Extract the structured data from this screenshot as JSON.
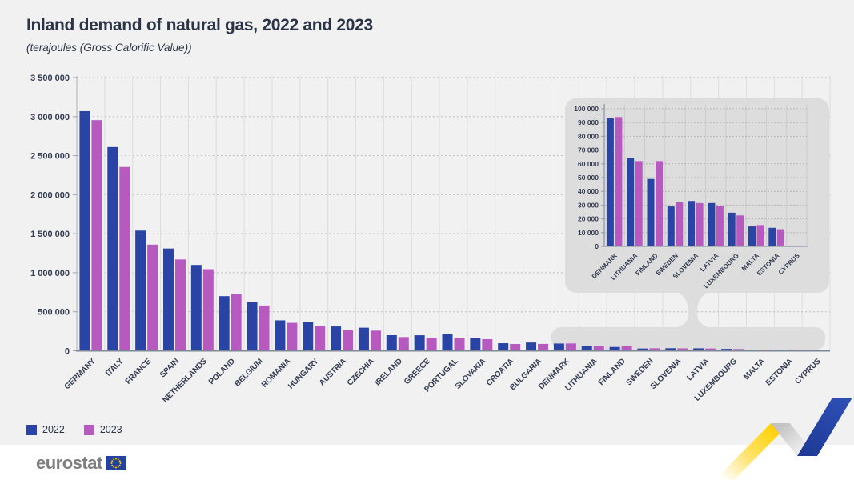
{
  "header": {
    "title": "Inland demand of natural gas, 2022 and 2023",
    "subtitle": "(terajoules (Gross Calorific Value))"
  },
  "legend": {
    "items": [
      {
        "label": "2022",
        "color": "#2a44a5"
      },
      {
        "label": "2023",
        "color": "#b75ac0"
      }
    ]
  },
  "footer": {
    "logo_text": "eurostat"
  },
  "colors": {
    "background_card": "#f2f1f1",
    "background_footer": "#ffffff",
    "series_2022": "#2a44a5",
    "series_2023": "#b75ac0",
    "inset_panel": "#dedddd",
    "text_dark": "#2b3446",
    "ribbon_yellow": "#ffd617",
    "ribbon_blue": "#2644a7"
  },
  "chart_data": {
    "type": "bar",
    "title": "Inland demand of natural gas, 2022 and 2023",
    "unit_label": "(terajoules (Gross Calorific Value))",
    "ylim": [
      0,
      3500000
    ],
    "ytick_step": 500000,
    "grid": true,
    "legend_position": "bottom-left",
    "categories": [
      "GERMANY",
      "ITALY",
      "FRANCE",
      "SPAIN",
      "NETHERLANDS",
      "POLAND",
      "BELGIUM",
      "ROMANIA",
      "HUNGARY",
      "AUSTRIA",
      "CZECHIA",
      "IRELAND",
      "GREECE",
      "PORTUGAL",
      "SLOVAKIA",
      "CROATIA",
      "BULGARIA",
      "DENMARK",
      "LITHUANIA",
      "FINLAND",
      "SWEDEN",
      "SLOVENIA",
      "LATVIA",
      "LUXEMBOURG",
      "MALTA",
      "ESTONIA",
      "CYPRUS"
    ],
    "series": [
      {
        "name": "2022",
        "color": "#2a44a5",
        "values": [
          3070000,
          2610000,
          1540000,
          1310000,
          1100000,
          700000,
          620000,
          390000,
          365000,
          312000,
          296000,
          200000,
          199000,
          218000,
          160000,
          97000,
          106000,
          93000,
          64000,
          49000,
          29000,
          33000,
          31500,
          24500,
          14500,
          13500,
          500
        ]
      },
      {
        "name": "2023",
        "color": "#b75ac0",
        "values": [
          2955000,
          2355000,
          1360000,
          1170000,
          1045000,
          730000,
          580000,
          358000,
          322000,
          262000,
          258000,
          176000,
          168000,
          169000,
          149000,
          87000,
          88000,
          94000,
          62000,
          62000,
          32000,
          31500,
          29500,
          22500,
          15500,
          12500,
          600
        ]
      }
    ],
    "inset": {
      "type": "bar",
      "description": "magnified view of the smallest countries",
      "ylim": [
        0,
        100000
      ],
      "ytick_step": 10000,
      "categories": [
        "DENMARK",
        "LITHUANIA",
        "FINLAND",
        "SWEDEN",
        "SLOVENIA",
        "LATVIA",
        "LUXEMBOURG",
        "MALTA",
        "ESTONIA",
        "CYPRUS"
      ],
      "series": [
        {
          "name": "2022",
          "color": "#2a44a5",
          "values": [
            93000,
            64000,
            49000,
            29000,
            33000,
            31500,
            24500,
            14500,
            13500,
            500
          ]
        },
        {
          "name": "2023",
          "color": "#b75ac0",
          "values": [
            94000,
            62000,
            62000,
            32000,
            31500,
            29500,
            22500,
            15500,
            12500,
            600
          ]
        }
      ]
    }
  }
}
